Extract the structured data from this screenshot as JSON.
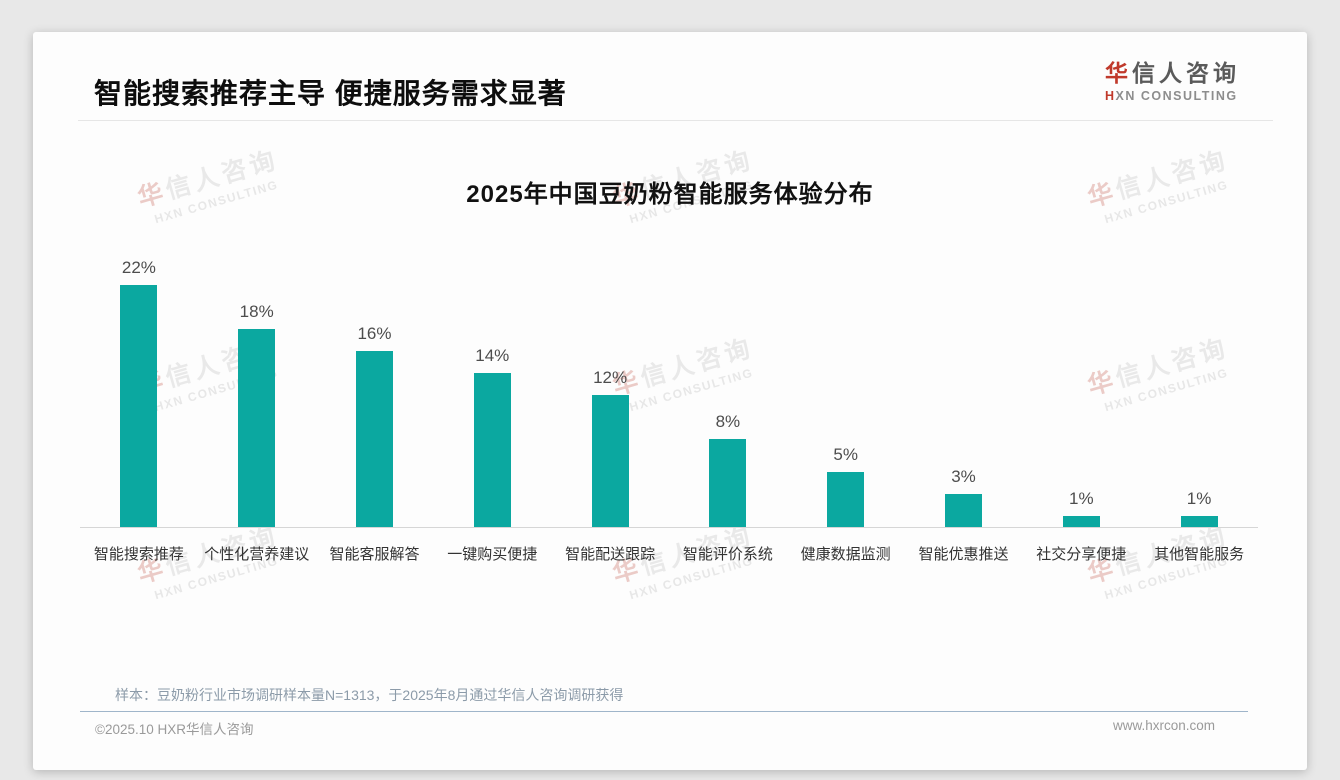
{
  "header": {
    "title": "智能搜索推荐主导 便捷服务需求显著",
    "logo": {
      "cn_first": "华",
      "cn_rest": "信人咨询",
      "en_first": "H",
      "en_rest": "XN CONSULTING"
    }
  },
  "watermark": {
    "cn_first": "华",
    "cn_rest": "信人咨询",
    "en": "HXN CONSULTING"
  },
  "chart_data": {
    "type": "bar",
    "title": "2025年中国豆奶粉智能服务体验分布",
    "categories": [
      "智能搜索推荐",
      "个性化营养建议",
      "智能客服解答",
      "一键购买便捷",
      "智能配送跟踪",
      "智能评价系统",
      "健康数据监测",
      "智能优惠推送",
      "社交分享便捷",
      "其他智能服务"
    ],
    "values": [
      22,
      18,
      16,
      14,
      12,
      8,
      5,
      3,
      1,
      1
    ],
    "unit": "%",
    "xlabel": "",
    "ylabel": "",
    "ylim": [
      0,
      24
    ],
    "grid": false,
    "legend": false,
    "value_labels": true,
    "bar_color": "#0ba8a0",
    "accent_color": "#c0392b"
  },
  "footnote": "样本：豆奶粉行业市场调研样本量N=1313，于2025年8月通过华信人咨询调研获得",
  "footer": {
    "left": "©2025.10 HXR华信人咨询",
    "right": "www.hxrcon.com"
  }
}
